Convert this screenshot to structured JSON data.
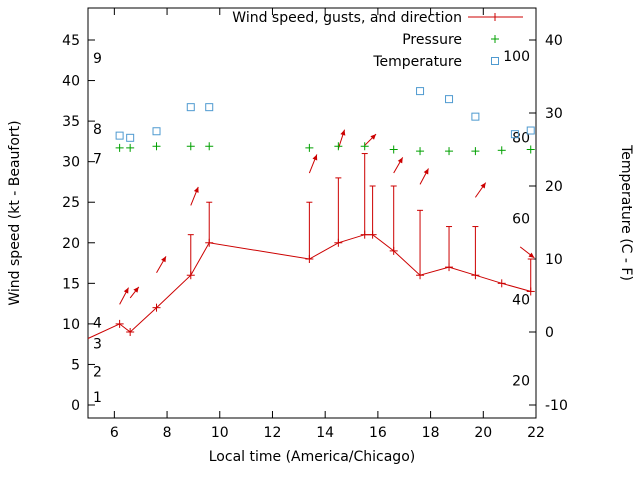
{
  "chart_data": {
    "type": "line",
    "title": "",
    "xlabel": "Local time (America/Chicago)",
    "ylabel_left": "Wind speed (kt - Beaufort)",
    "ylabel_right": "Temperature (C - F)",
    "x_range": [
      5,
      22
    ],
    "x_ticks": [
      6,
      8,
      10,
      12,
      14,
      16,
      18,
      20,
      22
    ],
    "y_left_range": [
      0,
      45
    ],
    "y_left_ticks": [
      0,
      5,
      10,
      15,
      20,
      25,
      30,
      35,
      40,
      45
    ],
    "y_right_range": [
      -10,
      40
    ],
    "y_right_ticks": [
      -10,
      0,
      10,
      20,
      30,
      40
    ],
    "grid": false,
    "legend_position": "top-right",
    "beaufort_labels": [
      {
        "text": "1",
        "kt": 1.0
      },
      {
        "text": "2",
        "kt": 4.1
      },
      {
        "text": "3",
        "kt": 7.6
      },
      {
        "text": "4",
        "kt": 10.2
      },
      {
        "text": "7",
        "kt": 30.4
      },
      {
        "text": "8",
        "kt": 34.0
      },
      {
        "text": "9",
        "kt": 42.8
      }
    ],
    "fahrenheit_labels": [
      20,
      40,
      60,
      80,
      100
    ],
    "legend": [
      {
        "label": "Wind speed, gusts, and direction",
        "marker": "line-plus",
        "color": "#cc0000"
      },
      {
        "label": "Pressure",
        "marker": "plus",
        "color": "#00a000"
      },
      {
        "label": "Temperature",
        "marker": "open-square",
        "color": "#4f9ad0"
      }
    ],
    "wind": {
      "color": "#cc0000",
      "points": [
        {
          "t": 5.0,
          "kt": 8.2
        },
        {
          "t": 6.2,
          "kt": 10
        },
        {
          "t": 6.6,
          "kt": 9
        },
        {
          "t": 7.6,
          "kt": 12
        },
        {
          "t": 8.9,
          "kt": 16,
          "gust": 21
        },
        {
          "t": 9.6,
          "kt": 20,
          "gust": 25
        },
        {
          "t": 13.4,
          "kt": 18,
          "gust": 25
        },
        {
          "t": 14.5,
          "kt": 20,
          "gust": 28
        },
        {
          "t": 15.5,
          "kt": 21,
          "gust": 31
        },
        {
          "t": 15.8,
          "kt": 21,
          "gust": 27
        },
        {
          "t": 16.6,
          "kt": 19,
          "gust": 27
        },
        {
          "t": 17.6,
          "kt": 16,
          "gust": 24
        },
        {
          "t": 18.7,
          "kt": 17,
          "gust": 22
        },
        {
          "t": 19.7,
          "kt": 16,
          "gust": 22
        },
        {
          "t": 20.7,
          "kt": 15
        },
        {
          "t": 21.8,
          "kt": 14,
          "gust": 18
        }
      ]
    },
    "wind_arrows": [
      {
        "t": 6.2,
        "kt": 12.4,
        "deg": 62,
        "len": 19
      },
      {
        "t": 6.6,
        "kt": 13.2,
        "deg": 52,
        "len": 14
      },
      {
        "t": 7.6,
        "kt": 16.3,
        "deg": 60,
        "len": 19
      },
      {
        "t": 8.9,
        "kt": 24.6,
        "deg": 68,
        "len": 20
      },
      {
        "t": 13.4,
        "kt": 28.6,
        "deg": 68,
        "len": 20
      },
      {
        "t": 14.5,
        "kt": 31.6,
        "deg": 72,
        "len": 20
      },
      {
        "t": 15.5,
        "kt": 32.0,
        "deg": 45,
        "len": 16
      },
      {
        "t": 16.6,
        "kt": 28.6,
        "deg": 60,
        "len": 18
      },
      {
        "t": 17.6,
        "kt": 27.2,
        "deg": 62,
        "len": 18
      },
      {
        "t": 19.7,
        "kt": 25.6,
        "deg": 55,
        "len": 18
      },
      {
        "t": 21.4,
        "kt": 19.5,
        "deg": -38,
        "len": 18
      }
    ],
    "pressure": {
      "color": "#00a000",
      "axis": "left",
      "points": [
        {
          "t": 6.2,
          "y": 31.7
        },
        {
          "t": 6.6,
          "y": 31.7
        },
        {
          "t": 7.6,
          "y": 31.9
        },
        {
          "t": 8.9,
          "y": 31.9
        },
        {
          "t": 9.6,
          "y": 31.9
        },
        {
          "t": 13.4,
          "y": 31.7
        },
        {
          "t": 14.5,
          "y": 31.9
        },
        {
          "t": 15.5,
          "y": 31.9
        },
        {
          "t": 16.6,
          "y": 31.5
        },
        {
          "t": 17.6,
          "y": 31.3
        },
        {
          "t": 18.7,
          "y": 31.3
        },
        {
          "t": 19.7,
          "y": 31.3
        },
        {
          "t": 20.7,
          "y": 31.4
        },
        {
          "t": 21.8,
          "y": 31.5
        }
      ]
    },
    "temperature": {
      "color": "#4f9ad0",
      "points": [
        {
          "t": 6.2,
          "c": 26.9
        },
        {
          "t": 6.6,
          "c": 26.6
        },
        {
          "t": 7.6,
          "c": 27.5
        },
        {
          "t": 8.9,
          "c": 30.8
        },
        {
          "t": 9.6,
          "c": 30.8
        },
        {
          "t": 17.6,
          "c": 33.0
        },
        {
          "t": 18.7,
          "c": 31.9
        },
        {
          "t": 19.7,
          "c": 29.5
        },
        {
          "t": 21.2,
          "c": 27.1
        },
        {
          "t": 21.8,
          "c": 27.6
        }
      ]
    }
  }
}
